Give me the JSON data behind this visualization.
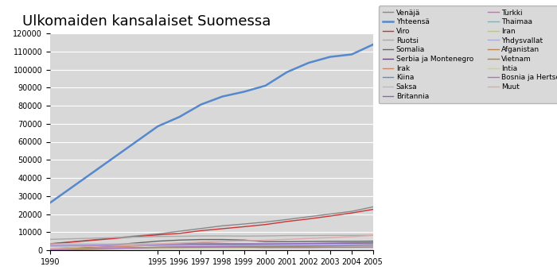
{
  "title": "Ulkomaiden kansalaiset Suomessa",
  "years": [
    1990,
    1995,
    1996,
    1997,
    1998,
    1999,
    2000,
    2001,
    2002,
    2003,
    2004,
    2005
  ],
  "series": [
    {
      "label": "Yhteensä",
      "color": "#5588cc",
      "linewidth": 1.8,
      "data": [
        26255,
        68566,
        73753,
        80600,
        85060,
        87680,
        91074,
        98577,
        103682,
        107003,
        108346,
        113852
      ]
    },
    {
      "label": "Venäjä",
      "color": "#888888",
      "linewidth": 1.0,
      "data": [
        3600,
        9000,
        10500,
        12000,
        13500,
        14500,
        15600,
        17000,
        18500,
        20000,
        21500,
        24000
      ]
    },
    {
      "label": "Viro",
      "color": "#cc3333",
      "linewidth": 1.0,
      "data": [
        3500,
        8500,
        9300,
        10800,
        11900,
        13000,
        14200,
        15900,
        17300,
        18900,
        20600,
        22600
      ]
    },
    {
      "label": "Ruotsi",
      "color": "#aaaaaa",
      "linewidth": 1.0,
      "data": [
        6000,
        7600,
        7700,
        7900,
        7900,
        7800,
        7900,
        8100,
        8100,
        8200,
        8200,
        8300
      ]
    },
    {
      "label": "Somalia",
      "color": "#666666",
      "linewidth": 1.0,
      "data": [
        50,
        5000,
        5600,
        5900,
        5900,
        5600,
        4700,
        4700,
        4800,
        4900,
        4900,
        5000
      ]
    },
    {
      "label": "Serbia ja Montenegro",
      "color": "#664477",
      "linewidth": 1.0,
      "data": [
        800,
        3200,
        3500,
        3900,
        3700,
        3500,
        3300,
        3200,
        3200,
        3400,
        3400,
        3500
      ]
    },
    {
      "label": "Irak",
      "color": "#cc8866",
      "linewidth": 1.0,
      "data": [
        200,
        2800,
        3000,
        3100,
        3200,
        3300,
        3200,
        3200,
        3400,
        3600,
        3700,
        3800
      ]
    },
    {
      "label": "Kiina",
      "color": "#6688cc",
      "linewidth": 1.0,
      "data": [
        400,
        1500,
        1700,
        1900,
        2200,
        2500,
        2800,
        3200,
        3600,
        3800,
        4000,
        4200
      ]
    },
    {
      "label": "Saksa",
      "color": "#bbbbbb",
      "linewidth": 1.0,
      "data": [
        3500,
        3500,
        3400,
        3500,
        3500,
        3500,
        3500,
        3400,
        3300,
        3300,
        3300,
        3300
      ]
    },
    {
      "label": "Britannia",
      "color": "#8866bb",
      "linewidth": 1.0,
      "data": [
        2500,
        2900,
        3000,
        3200,
        3300,
        3400,
        3500,
        3600,
        3700,
        3800,
        3900,
        4100
      ]
    },
    {
      "label": "Turkki",
      "color": "#dd66bb",
      "linewidth": 1.0,
      "data": [
        600,
        1500,
        1700,
        1800,
        1900,
        2000,
        2100,
        2100,
        2200,
        2200,
        2300,
        2400
      ]
    },
    {
      "label": "Thaimaa",
      "color": "#44cccc",
      "linewidth": 1.0,
      "data": [
        400,
        1300,
        1400,
        1500,
        1700,
        1900,
        2100,
        2300,
        2500,
        2700,
        2900,
        3300
      ]
    },
    {
      "label": "Iran",
      "color": "#cccc44",
      "linewidth": 1.0,
      "data": [
        700,
        1600,
        1700,
        1800,
        1800,
        1800,
        1800,
        1800,
        1900,
        1900,
        2000,
        2100
      ]
    },
    {
      "label": "Yhdysvallat",
      "color": "#aaaadd",
      "linewidth": 1.0,
      "data": [
        2200,
        2600,
        2600,
        2700,
        2700,
        2700,
        2800,
        2800,
        2800,
        2800,
        2800,
        2900
      ]
    },
    {
      "label": "Afganistan",
      "color": "#bb8855",
      "linewidth": 1.0,
      "data": [
        100,
        1000,
        1100,
        1300,
        1500,
        1700,
        1800,
        1800,
        1900,
        2000,
        2100,
        2300
      ]
    },
    {
      "label": "Vietnam",
      "color": "#998866",
      "linewidth": 1.0,
      "data": [
        500,
        1400,
        1500,
        1700,
        1800,
        1900,
        2000,
        2100,
        2200,
        2300,
        2400,
        2500
      ]
    },
    {
      "label": "Intia",
      "color": "#ccccaa",
      "linewidth": 1.0,
      "data": [
        500,
        900,
        950,
        1000,
        1100,
        1200,
        1300,
        1400,
        1500,
        1700,
        1900,
        2100
      ]
    },
    {
      "label": "Bosnia ja Hertsegovina",
      "color": "#aa77bb",
      "linewidth": 1.0,
      "data": [
        200,
        1600,
        1800,
        2000,
        1900,
        1700,
        1500,
        1500,
        1500,
        1600,
        1600,
        1700
      ]
    },
    {
      "label": "Muut",
      "color": "#ddaaaa",
      "linewidth": 1.0,
      "data": [
        1000,
        3500,
        4000,
        4500,
        4900,
        5200,
        5500,
        6000,
        6500,
        7000,
        7500,
        8200
      ]
    }
  ],
  "ylim": [
    0,
    120000
  ],
  "yticks": [
    0,
    10000,
    20000,
    30000,
    40000,
    50000,
    60000,
    70000,
    80000,
    90000,
    100000,
    110000,
    120000
  ],
  "xticks": [
    1990,
    1995,
    1996,
    1997,
    1998,
    1999,
    2000,
    2001,
    2002,
    2003,
    2004,
    2005
  ],
  "bg_color": "#d8d8d8",
  "legend_bg": "#d0d0d0",
  "fig_width": 7.0,
  "fig_height": 3.5
}
